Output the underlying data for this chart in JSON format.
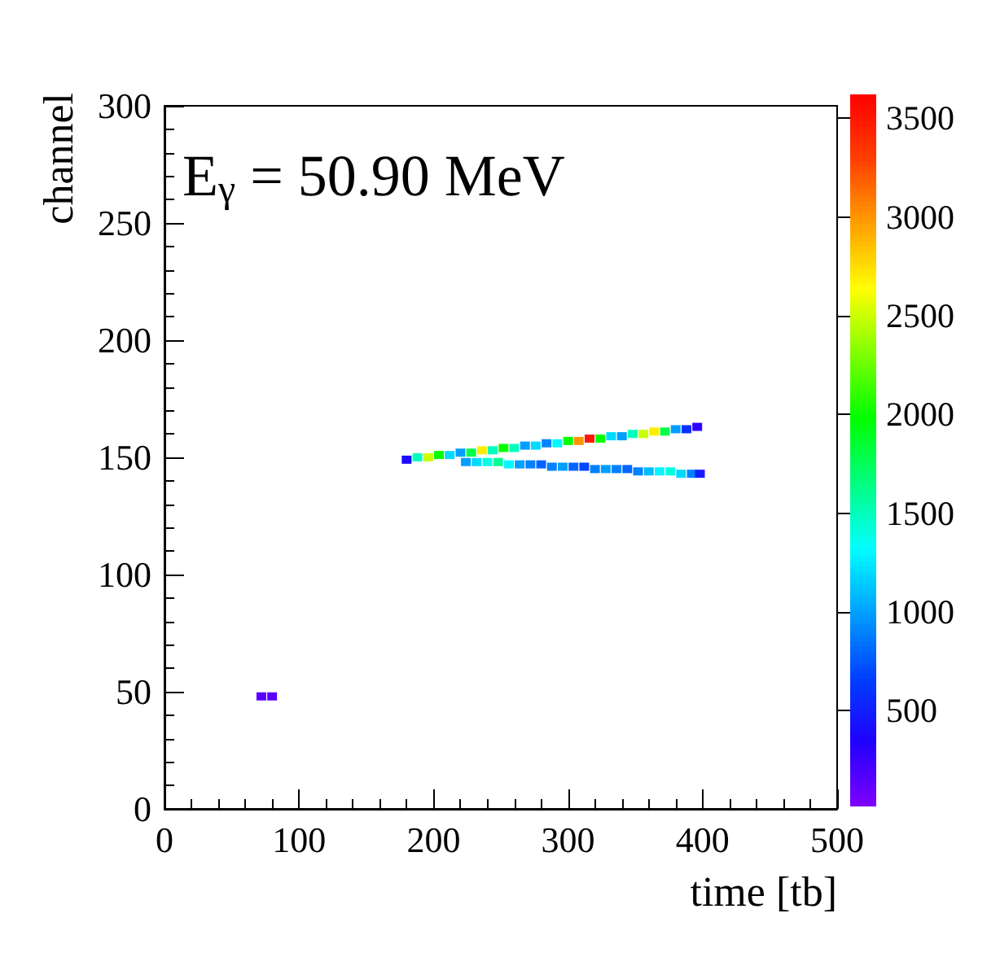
{
  "chart_data": {
    "type": "scatter",
    "marker": "square",
    "annotations": [
      "E$_{γ}$ = 50.90 MeV"
    ],
    "xlabel": "time [tb]",
    "ylabel": "channel",
    "xlim": [
      0,
      500
    ],
    "xticks": [
      0,
      100,
      200,
      300,
      400,
      500
    ],
    "ylim": [
      0,
      300
    ],
    "yticks": [
      0,
      50,
      100,
      150,
      200,
      250,
      300
    ],
    "clim": [
      20,
      3620
    ],
    "cticks": [
      500,
      1000,
      1500,
      2000,
      2500,
      3000,
      3500
    ],
    "x": [
      72,
      80,
      180,
      188,
      196,
      204,
      212,
      220,
      228,
      236,
      244,
      252,
      260,
      268,
      276,
      284,
      292,
      300,
      308,
      316,
      324,
      332,
      340,
      348,
      356,
      364,
      372,
      380,
      388,
      396,
      224,
      232,
      240,
      248,
      256,
      264,
      272,
      280,
      288,
      296,
      304,
      312,
      320,
      328,
      336,
      344,
      352,
      360,
      368,
      376,
      384,
      392,
      398
    ],
    "values": [
      48,
      48,
      149,
      150,
      150,
      151,
      151,
      152,
      152,
      153,
      153,
      154,
      154,
      155,
      155,
      156,
      156,
      157,
      157,
      158,
      158,
      159,
      159,
      160,
      160,
      161,
      161,
      162,
      162,
      163,
      148,
      148,
      148,
      148,
      147,
      147,
      147,
      147,
      146,
      146,
      146,
      146,
      145,
      145,
      145,
      145,
      144,
      144,
      144,
      144,
      143,
      143,
      143
    ],
    "cvalues": [
      150,
      150,
      400,
      1500,
      2500,
      2000,
      1200,
      1000,
      1800,
      2700,
      1500,
      2000,
      1500,
      1000,
      1200,
      900,
      1300,
      2000,
      3000,
      3500,
      2000,
      1200,
      1000,
      1500,
      2500,
      2700,
      1800,
      1000,
      600,
      300,
      1000,
      1200,
      1400,
      1600,
      1300,
      1000,
      900,
      800,
      900,
      1000,
      800,
      700,
      900,
      1000,
      900,
      800,
      900,
      1100,
      1300,
      1400,
      1200,
      900,
      500
    ]
  }
}
